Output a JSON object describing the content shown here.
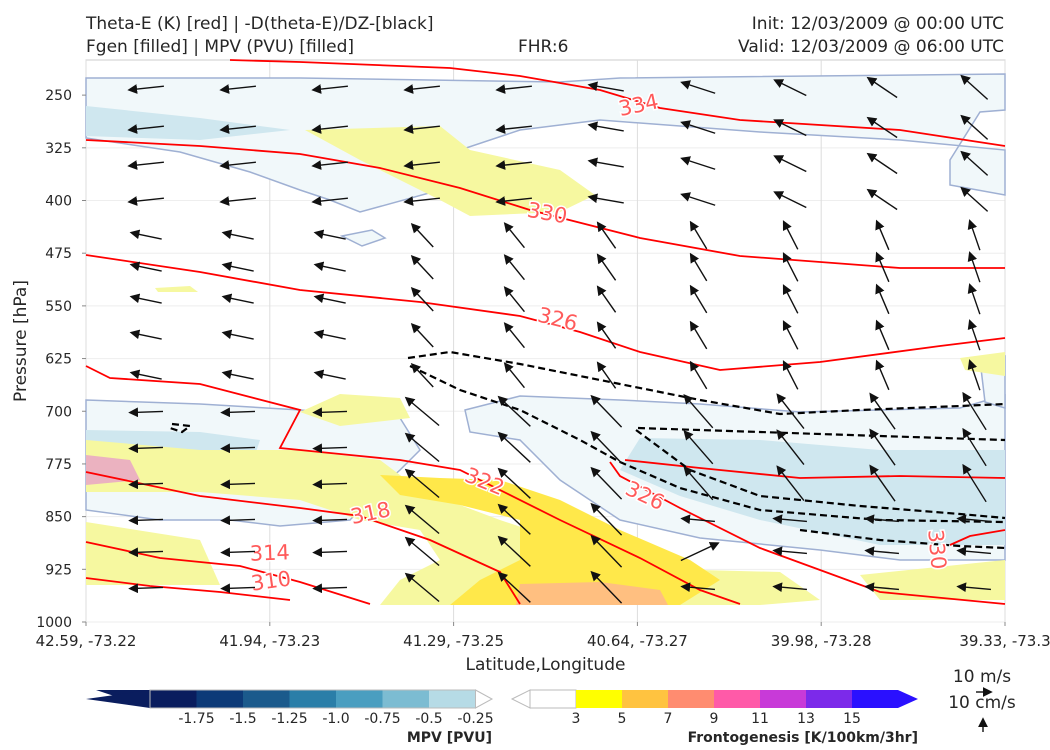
{
  "header": {
    "title_line1": "Theta-E (K) [red] | -D(theta-E)/DZ-[black]",
    "title_line2": "Fgen [filled] | MPV (PVU) [filled]",
    "fhr": "FHR:6",
    "init": "Init: 12/03/2009 @ 00:00 UTC",
    "valid": "Valid: 12/03/2009 @ 06:00 UTC"
  },
  "chart_data": {
    "type": "cross-section",
    "xlabel": "Latitude,Longitude",
    "ylabel": "Pressure [hPa]",
    "x_ticks": [
      "42.59, -73.22",
      "41.94, -73.23",
      "41.29, -73.25",
      "40.64, -73.27",
      "39.98, -73.28",
      "39.33, -73.3"
    ],
    "y_ticks": [
      250,
      325,
      400,
      475,
      550,
      625,
      700,
      775,
      850,
      925,
      1000
    ],
    "ylim": [
      1000,
      200
    ],
    "theta_e_labels": [
      "334",
      "330",
      "326",
      "322",
      "326",
      "318",
      "314",
      "310",
      "330"
    ],
    "series": [
      {
        "name": "Theta-E (K) [red]",
        "color": "#ff0000"
      },
      {
        "name": "-D(theta-E)/DZ-[black]",
        "color": "#000000"
      },
      {
        "name": "Fgen [filled]"
      },
      {
        "name": "MPV (PVU) [filled]"
      }
    ],
    "mpv_colorbar": {
      "label": "MPV [PVU]",
      "ticks": [
        "-1.75",
        "-1.5",
        "-1.25",
        "-1.0",
        "-0.75",
        "-0.5",
        "-0.25"
      ],
      "colors": [
        "#0a1d5e",
        "#0d3a78",
        "#1b5a8c",
        "#2a7ea8",
        "#4a9ec0",
        "#7cbcd2",
        "#b6dbe6",
        "#ffffff"
      ]
    },
    "fgen_colorbar": {
      "label": "Frontogenesis [K/100km/3hr]",
      "ticks": [
        "3",
        "5",
        "7",
        "9",
        "11",
        "13",
        "15"
      ],
      "colors": [
        "#ffffff",
        "#ffff00",
        "#ffc340",
        "#ff8c70",
        "#ff5aa8",
        "#c83ad8",
        "#7c2aea",
        "#2a10ff"
      ]
    },
    "wind_key": {
      "h_label": "10 m/s",
      "v_label": "10 cm/s"
    }
  }
}
